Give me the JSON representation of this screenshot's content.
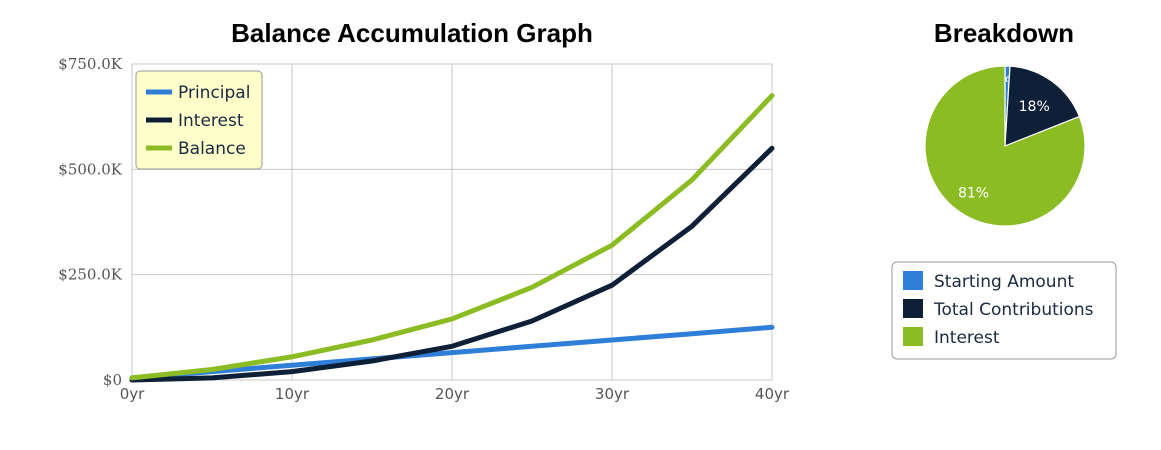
{
  "line_chart": {
    "title": "Balance Accumulation Graph"
  },
  "pie_chart": {
    "title": "Breakdown"
  },
  "colors": {
    "principal": "#2f7fd8",
    "interest": "#0e2038",
    "balance": "#8cbc24",
    "grid": "#c8c8c8",
    "legend_bg": "#ffffcc",
    "starting_amount": "#2f7fd8",
    "total_contributions": "#0e2038",
    "pie_interest": "#8cbc24"
  },
  "chart_data": [
    {
      "type": "line",
      "title": "Balance Accumulation Graph",
      "xlabel": "",
      "ylabel": "",
      "x_ticks": [
        "0yr",
        "10yr",
        "20yr",
        "30yr",
        "40yr"
      ],
      "y_ticks": [
        "$0",
        "$250.0K",
        "$500.0K",
        "$750.0K"
      ],
      "xlim": [
        0,
        40
      ],
      "ylim": [
        0,
        750000
      ],
      "grid": true,
      "legend_position": "top-left",
      "x": [
        0,
        5,
        10,
        15,
        20,
        25,
        30,
        35,
        40
      ],
      "series": [
        {
          "name": "Principal",
          "values": [
            5000,
            20000,
            35000,
            50000,
            65000,
            80000,
            95000,
            110000,
            125000
          ]
        },
        {
          "name": "Interest",
          "values": [
            0,
            5000,
            20000,
            45000,
            80000,
            140000,
            225000,
            365000,
            550000
          ]
        },
        {
          "name": "Balance",
          "values": [
            5000,
            25000,
            55000,
            95000,
            145000,
            220000,
            320000,
            475000,
            675000
          ]
        }
      ]
    },
    {
      "type": "pie",
      "title": "Breakdown",
      "legend_position": "bottom",
      "slices": [
        {
          "name": "Starting Amount",
          "value": 1,
          "label": "1%"
        },
        {
          "name": "Total Contributions",
          "value": 18,
          "label": "18%"
        },
        {
          "name": "Interest",
          "value": 81,
          "label": "81%"
        }
      ]
    }
  ]
}
